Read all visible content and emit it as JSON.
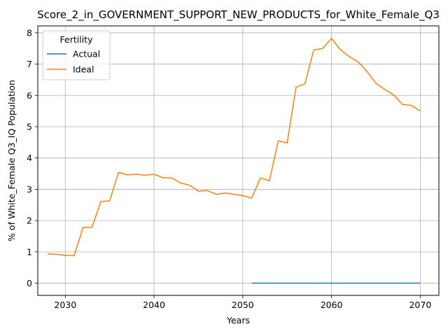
{
  "chart_data": {
    "type": "line",
    "title": "Score_2_in_GOVERNMENT_SUPPORT_NEW_PRODUCTS_for_White_Female_Q3",
    "xlabel": "Years",
    "ylabel": "% of White_Female Q3_IQ Population",
    "xlim": [
      2026.9,
      2072.1
    ],
    "ylim": [
      -0.39,
      8.22
    ],
    "xticks": [
      2030,
      2040,
      2050,
      2060,
      2070
    ],
    "yticks": [
      0,
      1,
      2,
      3,
      4,
      5,
      6,
      7,
      8
    ],
    "grid": true,
    "legend": {
      "title": "Fertility",
      "placement": "top-left"
    },
    "series": [
      {
        "name": "Actual",
        "color": "#1f77b4",
        "x": [
          2051,
          2052,
          2053,
          2054,
          2055,
          2056,
          2057,
          2058,
          2059,
          2060,
          2061,
          2062,
          2063,
          2064,
          2065,
          2066,
          2067,
          2068,
          2069,
          2070
        ],
        "y": [
          0,
          0,
          0,
          0,
          0,
          0,
          0,
          0,
          0,
          0,
          0,
          0,
          0,
          0,
          0,
          0,
          0,
          0,
          0,
          0
        ]
      },
      {
        "name": "Ideal",
        "color": "#ff7f0e",
        "x": [
          2028,
          2029,
          2030,
          2031,
          2032,
          2033,
          2034,
          2035,
          2036,
          2037,
          2038,
          2039,
          2040,
          2041,
          2042,
          2043,
          2044,
          2045,
          2046,
          2047,
          2048,
          2049,
          2050,
          2051,
          2052,
          2053,
          2054,
          2055,
          2056,
          2057,
          2058,
          2059,
          2060,
          2061,
          2062,
          2063,
          2064,
          2065,
          2066,
          2067,
          2068,
          2069,
          2070
        ],
        "y": [
          0.94,
          0.92,
          0.89,
          0.88,
          1.78,
          1.78,
          2.61,
          2.63,
          3.54,
          3.46,
          3.48,
          3.45,
          3.48,
          3.37,
          3.36,
          3.2,
          3.13,
          2.94,
          2.96,
          2.84,
          2.88,
          2.84,
          2.8,
          2.72,
          3.36,
          3.27,
          4.55,
          4.48,
          6.26,
          6.37,
          7.45,
          7.5,
          7.82,
          7.46,
          7.24,
          7.07,
          6.76,
          6.39,
          6.19,
          6.01,
          5.71,
          5.68,
          5.5
        ]
      }
    ]
  }
}
